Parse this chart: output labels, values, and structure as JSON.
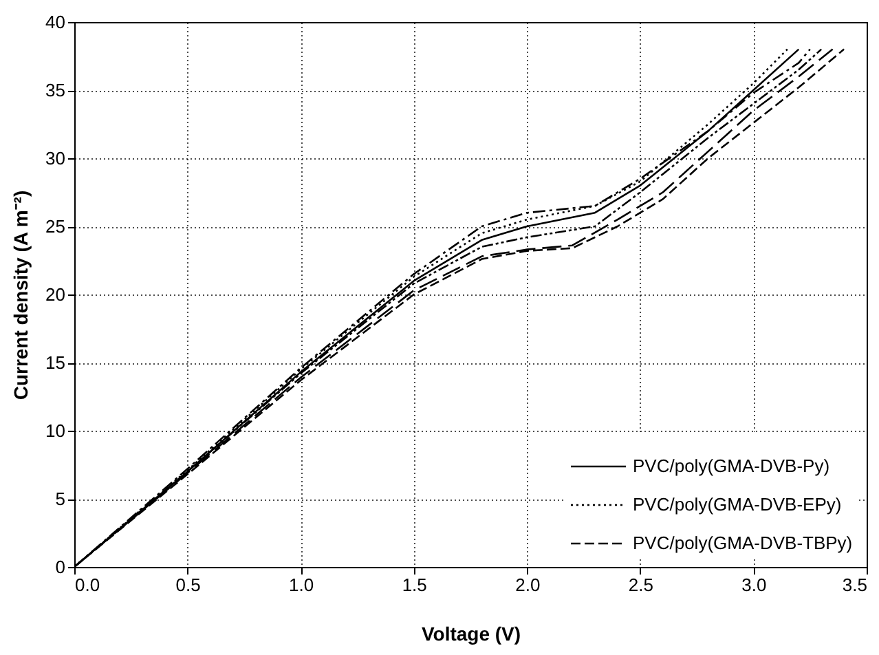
{
  "chart_data": {
    "type": "line",
    "xlabel": "Voltage (V)",
    "ylabel": "Current density (A m⁻²)",
    "xlim": [
      0,
      3.5
    ],
    "xticks": [
      {
        "value": 0,
        "label": "0.0"
      },
      0.5,
      {
        "value": 1,
        "label": "1.0"
      },
      1.5,
      {
        "value": 2,
        "label": "2.0"
      },
      2.5,
      {
        "value": 3,
        "label": "3.0"
      },
      3.5
    ],
    "ylim": [
      0,
      40
    ],
    "yticks": [
      0,
      5,
      10,
      15,
      20,
      25,
      30,
      35,
      40
    ],
    "grid": true,
    "legend": "bottom right",
    "series": [
      {
        "name": "PVC/poly(GMA-DVB-Py)",
        "color": "#000000",
        "line_style": "solid",
        "x": [
          0,
          0.5,
          1.0,
          1.5,
          1.8,
          2.0,
          2.3,
          2.5,
          2.8,
          3.0,
          3.2
        ],
        "values": [
          0,
          7,
          14.3,
          21,
          24,
          25,
          26,
          28,
          32,
          35,
          38
        ]
      },
      {
        "name": "PVC/poly(GMA-DVB-EPy)",
        "color": "#000000",
        "line_style": "dotted",
        "x": [
          0,
          0.5,
          1.0,
          1.5,
          1.8,
          2.0,
          2.3,
          2.5,
          2.8,
          3.0,
          3.15
        ],
        "values": [
          0,
          7.1,
          14.5,
          21.3,
          24.5,
          25.5,
          26.5,
          28.3,
          32.5,
          35.5,
          38
        ]
      },
      {
        "name": "PVC/poly(GMA-DVB-TBPy)",
        "color": "#000000",
        "line_style": "dashed",
        "x": [
          0,
          0.5,
          1.0,
          1.5,
          1.8,
          2.0,
          2.2,
          2.4,
          2.6,
          2.8,
          3.0,
          3.2,
          3.4
        ],
        "values": [
          0,
          6.8,
          13.7,
          20,
          22.6,
          23.2,
          23.4,
          25,
          27,
          30,
          32.6,
          35.2,
          38
        ]
      },
      {
        "color": "#000000",
        "line_style": "dashed",
        "x": [
          0,
          0.5,
          1.0,
          1.5,
          1.8,
          2.0,
          2.3,
          2.5,
          2.8,
          3.0,
          3.2,
          3.3
        ],
        "values": [
          0,
          7,
          14.2,
          20.8,
          23.5,
          24.2,
          25,
          27.5,
          31.5,
          34,
          36.5,
          38
        ]
      },
      {
        "color": "#000000",
        "line_style": "dashed",
        "x": [
          0,
          0.5,
          1.0,
          1.5,
          1.8,
          2.0,
          2.2,
          2.4,
          2.6,
          2.8,
          3.0,
          3.2,
          3.35
        ],
        "values": [
          0,
          6.9,
          13.9,
          20.3,
          22.8,
          23.3,
          23.6,
          25.5,
          27.5,
          30.5,
          33.5,
          36,
          38
        ]
      },
      {
        "color": "#000000",
        "line_style": "dashed",
        "x": [
          0,
          0.5,
          1.0,
          1.5,
          1.8,
          2.0,
          2.3,
          2.5,
          2.8,
          3.0,
          3.2,
          3.25
        ],
        "values": [
          0,
          7.2,
          14.6,
          21.5,
          25,
          26,
          26.5,
          28.5,
          32,
          34.8,
          37,
          38
        ]
      }
    ]
  }
}
